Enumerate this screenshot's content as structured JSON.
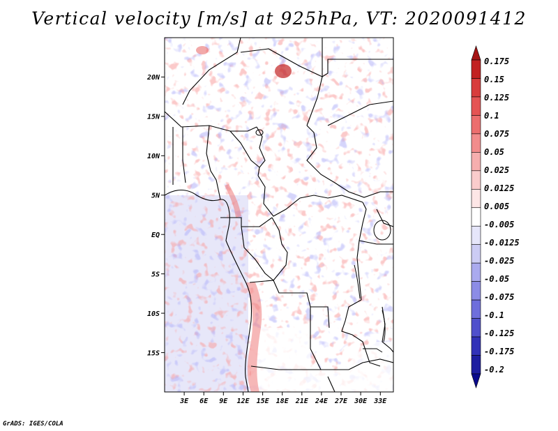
{
  "title": "Vertical velocity [m/s] at 925hPa, VT: 2020091412",
  "credit": "GrADS: IGES/COLA",
  "map": {
    "lon_range": [
      0,
      35
    ],
    "lat_range": [
      -20,
      25
    ],
    "lon_ticks": [
      "3E",
      "6E",
      "9E",
      "12E",
      "15E",
      "18E",
      "21E",
      "24E",
      "27E",
      "30E",
      "33E"
    ],
    "lat_ticks": [
      "20N",
      "15N",
      "10N",
      "5N",
      "EQ",
      "5S",
      "10S",
      "15S"
    ]
  },
  "colorbar": {
    "labels": [
      "0.175",
      "0.15",
      "0.125",
      "0.1",
      "0.075",
      "0.05",
      "0.025",
      "0.0125",
      "0.005",
      "-0.005",
      "-0.0125",
      "-0.025",
      "-0.05",
      "-0.075",
      "-0.1",
      "-0.125",
      "-0.175",
      "-0.2"
    ],
    "colors": [
      "#a51414",
      "#c22222",
      "#d83c3c",
      "#e55454",
      "#ec6e6e",
      "#f28c8c",
      "#f6aeae",
      "#facccc",
      "#fde6e6",
      "#ffffff",
      "#e6e6fa",
      "#ccccf4",
      "#aaaaee",
      "#8c8ce6",
      "#6e6edc",
      "#5050cc",
      "#3232b8",
      "#1e1ea0",
      "#0a0a8c"
    ]
  }
}
